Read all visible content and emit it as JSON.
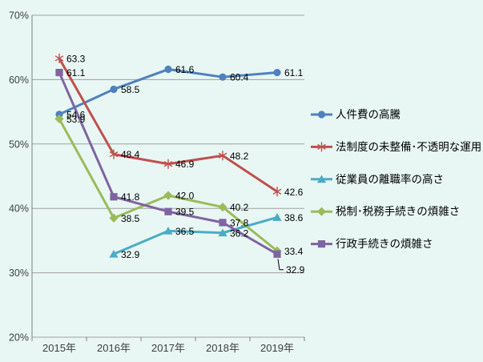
{
  "chart_data": {
    "type": "line",
    "title": "",
    "xlabel": "",
    "ylabel": "",
    "categories": [
      "2015年",
      "2016年",
      "2017年",
      "2018年",
      "2019年"
    ],
    "series": [
      {
        "name": "人件費の高騰",
        "color": "#4f81bd",
        "marker": "circle",
        "values": [
          54.6,
          58.5,
          61.6,
          60.4,
          61.1
        ]
      },
      {
        "name": "法制度の未整備･不透明な運用",
        "color": "#c0504d",
        "marker": "asterisk",
        "values": [
          63.3,
          48.4,
          46.9,
          48.2,
          42.6
        ]
      },
      {
        "name": "従業員の離職率の高さ",
        "color": "#4bacc6",
        "marker": "triangle",
        "values": [
          null,
          32.9,
          36.5,
          36.2,
          38.6
        ]
      },
      {
        "name": "税制･税務手続きの煩雑さ",
        "color": "#9bbb59",
        "marker": "diamond",
        "values": [
          53.9,
          38.5,
          42.0,
          40.2,
          33.4
        ]
      },
      {
        "name": "行政手続きの煩雑さ",
        "color": "#8064a2",
        "marker": "square",
        "values": [
          61.1,
          41.8,
          39.5,
          37.8,
          32.9
        ]
      }
    ],
    "ylim": [
      20,
      70
    ],
    "ytick_step": 10,
    "ytick_suffix": "%",
    "grid": true,
    "legend_position": "right",
    "data_labels": true,
    "label_decimals": 1,
    "colors": {
      "background": "#e8f7f4",
      "gridline": "#a0a0a0",
      "axis_line": "#808080",
      "axis_text": "#3f3f3f",
      "label_text": "#000000",
      "leader_line": "#000000"
    }
  }
}
